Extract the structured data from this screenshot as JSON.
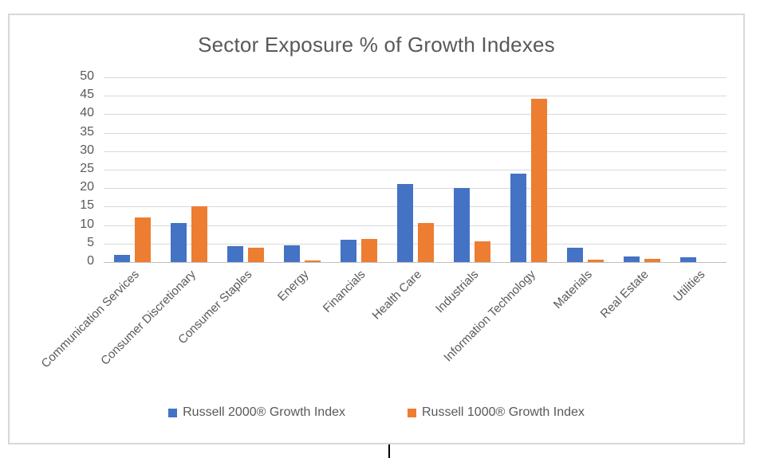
{
  "frame": {
    "border_color": "#d8d8d8",
    "background": "#ffffff"
  },
  "text_color": "#595959",
  "gridline_color": "#d9d9d9",
  "chart_data": {
    "type": "bar",
    "title": "Sector Exposure % of Growth Indexes",
    "categories": [
      "Communication Services",
      "Consumer Discretionary",
      "Consumer Staples",
      "Energy",
      "Financials",
      "Health Care",
      "Industrials",
      "Information Technology",
      "Materials",
      "Real Estate",
      "Utilities"
    ],
    "series": [
      {
        "name": "Russell 2000® Growth Index",
        "color": "#4472C4",
        "values": [
          1.9,
          10.5,
          4.3,
          4.5,
          6.0,
          21.2,
          20.1,
          24.0,
          3.9,
          1.5,
          1.2
        ]
      },
      {
        "name": "Russell 1000® Growth Index",
        "color": "#ED7D31",
        "values": [
          12.1,
          15.0,
          3.9,
          0.4,
          6.3,
          10.6,
          5.7,
          44.2,
          0.7,
          0.8,
          0
        ]
      }
    ],
    "xlabel": "",
    "ylabel": "",
    "ylim": [
      0,
      50
    ],
    "ytick_step": 5,
    "ytick_labels": [
      "0",
      "5",
      "10",
      "15",
      "20",
      "25",
      "30",
      "35",
      "40",
      "45",
      "50"
    ],
    "grid": true,
    "legend_position": "bottom"
  }
}
